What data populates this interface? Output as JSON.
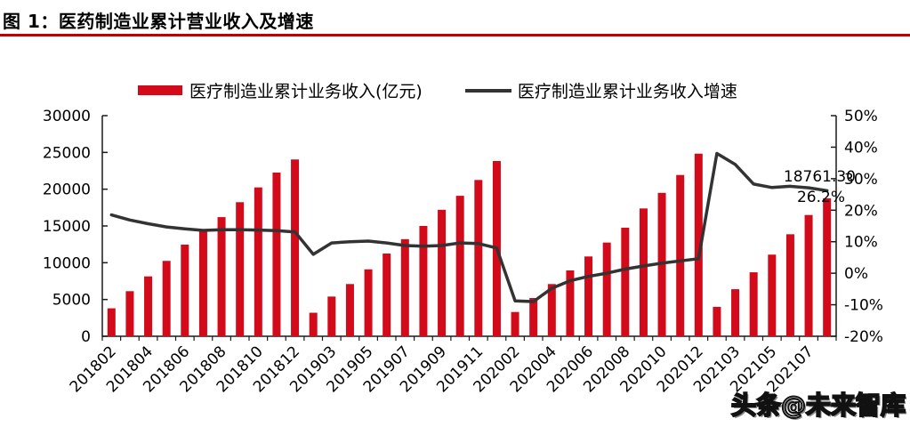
{
  "header": {
    "title": "图 1：医药制造业累计营业收入及增速"
  },
  "watermark": {
    "text": "头条@未来智库"
  },
  "colors": {
    "bar": "#d20a1a",
    "line": "#333333",
    "title_rule": "#c00000",
    "axis": "#1a1a1a",
    "text": "#000000"
  },
  "chart_data": {
    "type": "bar",
    "title": "图 1：医药制造业累计营业收入及增速",
    "categories": [
      "201802",
      "201803",
      "201804",
      "201805",
      "201806",
      "201807",
      "201808",
      "201809",
      "201810",
      "201811",
      "201812",
      "201902",
      "201903",
      "201904",
      "201905",
      "201906",
      "201907",
      "201908",
      "201909",
      "201910",
      "201911",
      "201912",
      "202002",
      "202003",
      "202004",
      "202005",
      "202006",
      "202007",
      "202008",
      "202009",
      "202010",
      "202011",
      "202012",
      "202102",
      "202103",
      "202104",
      "202105",
      "202106",
      "202107",
      "202108"
    ],
    "series": [
      {
        "name": "医疗制造业累计业务收入(亿元)",
        "type": "bar",
        "yaxis": "left",
        "values": [
          3800,
          6130,
          8140,
          10250,
          12460,
          14400,
          16200,
          18230,
          20240,
          22260,
          24040,
          3200,
          5400,
          7100,
          9100,
          11250,
          13200,
          15000,
          17200,
          19100,
          21250,
          23830,
          3300,
          5200,
          7100,
          8950,
          10850,
          12740,
          14760,
          17380,
          19500,
          21930,
          24830,
          4000,
          6400,
          8700,
          11100,
          13870,
          16490,
          18761.3
        ]
      },
      {
        "name": "医疗制造业累计业务收入增速",
        "type": "line",
        "yaxis": "right",
        "values": [
          18.5,
          16.9,
          15.7,
          14.7,
          14.1,
          13.6,
          13.8,
          13.8,
          13.7,
          13.5,
          13.1,
          6.0,
          9.6,
          10.0,
          10.2,
          9.6,
          8.8,
          8.6,
          8.8,
          9.6,
          9.4,
          8.0,
          -8.8,
          -9.0,
          -4.8,
          -2.4,
          -1.0,
          0.0,
          1.3,
          2.3,
          3.2,
          3.9,
          4.6,
          38.0,
          34.5,
          28.3,
          27.2,
          27.6,
          27.1,
          26.2
        ]
      }
    ],
    "x_tick_labels": [
      "201802",
      "201804",
      "201806",
      "201808",
      "201810",
      "201812",
      "201903",
      "201905",
      "201907",
      "201909",
      "201911",
      "202002",
      "202004",
      "202006",
      "202008",
      "202010",
      "202012",
      "202103",
      "202105",
      "202107"
    ],
    "left_axis": {
      "min": 0,
      "max": 30000,
      "tick_step": 5000,
      "tick_labels": [
        "30000",
        "25000",
        "20000",
        "15000",
        "10000",
        "5000",
        "0"
      ]
    },
    "right_axis": {
      "min": -20,
      "max": 50,
      "tick_step": 10,
      "tick_labels": [
        "50%",
        "40%",
        "30%",
        "20%",
        "10%",
        "0%",
        "-10%",
        "-20%"
      ]
    },
    "annotations": [
      {
        "text": "18761.30"
      },
      {
        "text": "26.2%"
      }
    ],
    "legend_position": "top",
    "grid": false
  }
}
